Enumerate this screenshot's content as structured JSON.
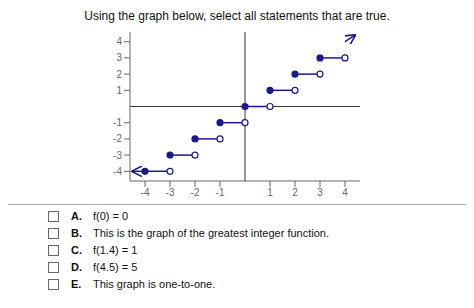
{
  "chart_data": {
    "type": "step",
    "title": "Using the graph below, select all statements that are true.",
    "color": "#1a1a8c",
    "steps": [
      {
        "x_start": -4,
        "x_end": -3,
        "y": -4
      },
      {
        "x_start": -3,
        "x_end": -2,
        "y": -3
      },
      {
        "x_start": -2,
        "x_end": -1,
        "y": -2
      },
      {
        "x_start": -1,
        "x_end": 0,
        "y": -1
      },
      {
        "x_start": 0,
        "x_end": 1,
        "y": 0
      },
      {
        "x_start": 1,
        "x_end": 2,
        "y": 1
      },
      {
        "x_start": 2,
        "x_end": 3,
        "y": 2
      },
      {
        "x_start": 3,
        "x_end": 4,
        "y": 3
      }
    ],
    "arrows": [
      {
        "x_start": -4,
        "y_start": -4,
        "x_end": -4.5,
        "y_end": -4
      },
      {
        "x_start": 4,
        "y_start": 4,
        "x_end": 4.4,
        "y_end": 4.4
      }
    ],
    "xlim": [
      -4.6,
      4.6
    ],
    "ylim": [
      -4.6,
      4.6
    ],
    "xticks": [
      -4,
      -3,
      -2,
      -1,
      1,
      2,
      3,
      4
    ],
    "yticks": [
      -4,
      -3,
      -2,
      -1,
      1,
      2,
      3,
      4
    ],
    "grid": false,
    "choices": [
      {
        "label": "A.",
        "text": "f(0) = 0"
      },
      {
        "label": "B.",
        "text": "This is the graph of the greatest integer function."
      },
      {
        "label": "C.",
        "text": "f(1.4) = 1"
      },
      {
        "label": "D.",
        "text": "f(4.5) = 5"
      },
      {
        "label": "E.",
        "text": "This graph is one-to-one."
      }
    ]
  }
}
